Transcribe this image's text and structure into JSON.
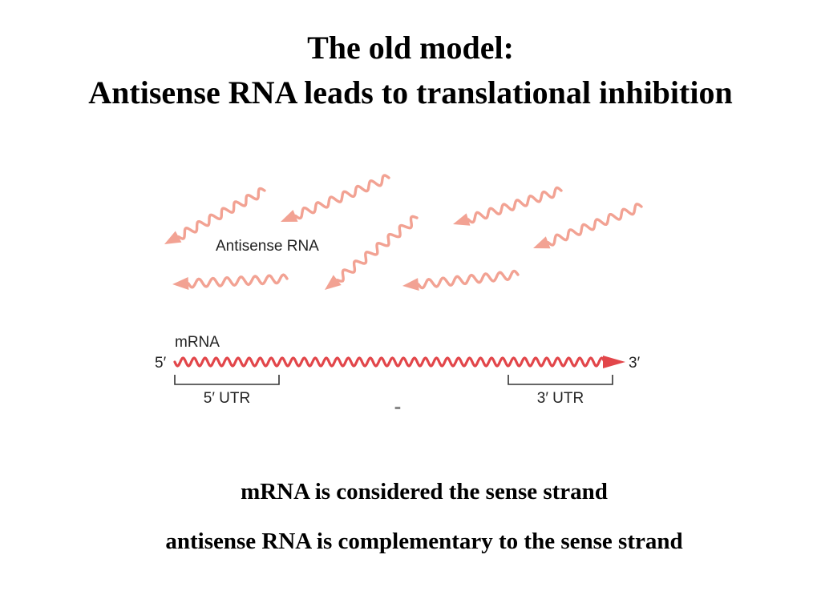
{
  "title": {
    "line1": "The old model:",
    "line2": "Antisense RNA leads to translational inhibition"
  },
  "diagram": {
    "antisense_label": "Antisense RNA",
    "mrna_label": "mRNA",
    "five_prime": "5′",
    "three_prime": "3′",
    "utr5_label": "5′ UTR",
    "utr3_label": "3′ UTR",
    "dash": "-",
    "colors": {
      "antisense": "#f2a293",
      "mrna": "#e2464a",
      "bracket": "#333333"
    }
  },
  "captions": {
    "line1": "mRNA is considered the sense strand",
    "line2": "antisense RNA is complementary to the sense strand"
  }
}
